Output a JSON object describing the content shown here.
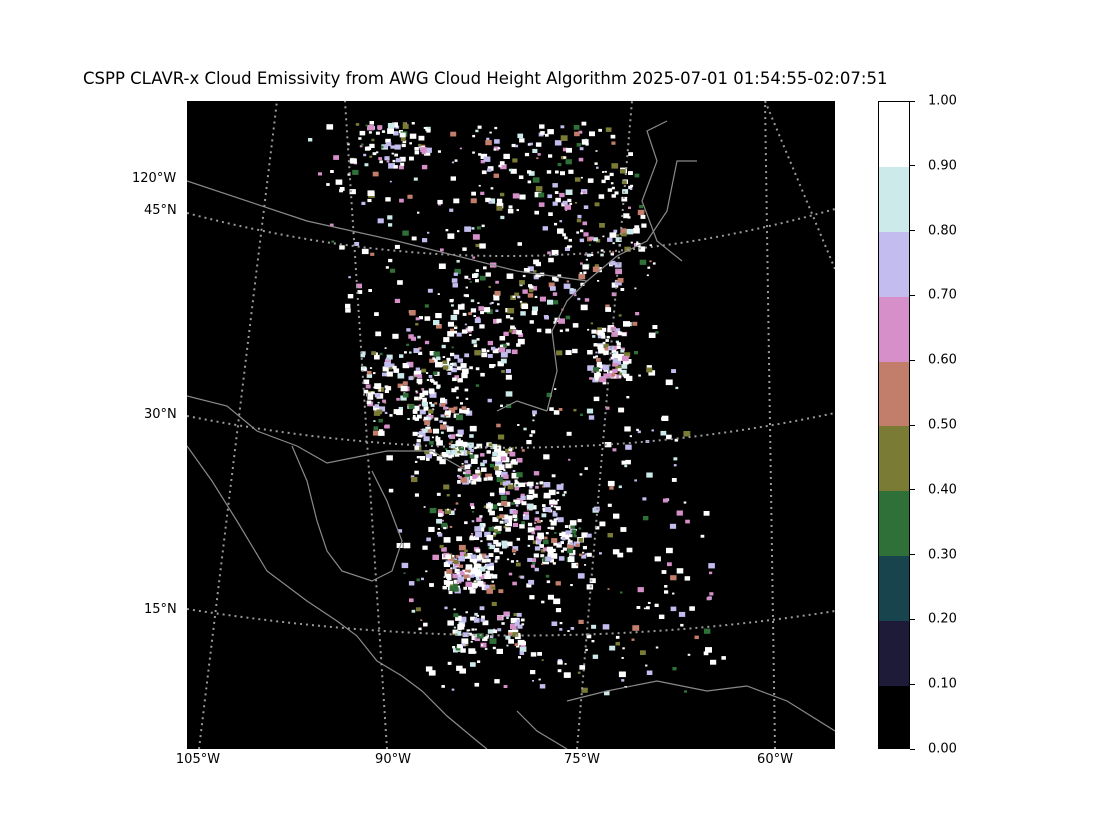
{
  "title": "CSPP CLAVR-x Cloud Emissivity from AWG Cloud Height Algorithm 2025-07-01 01:54:55-02:07:51",
  "map": {
    "lon_ticks": [
      "105°W",
      "90°W",
      "75°W",
      "60°W"
    ],
    "lat_ticks": [
      "120°W",
      "45°N",
      "30°N",
      "15°N"
    ],
    "gridlines": "dotted",
    "coastline_color": "#808080"
  },
  "colorbar": {
    "ticks": [
      "0.00",
      "0.10",
      "0.20",
      "0.30",
      "0.40",
      "0.50",
      "0.60",
      "0.70",
      "0.80",
      "0.90",
      "1.00"
    ],
    "colors": [
      "#000000",
      "#1e1b38",
      "#18444d",
      "#2e7038",
      "#7a7c36",
      "#c27e6a",
      "#d68fc9",
      "#c3bcef",
      "#cdeaea",
      "#ffffff"
    ]
  }
}
